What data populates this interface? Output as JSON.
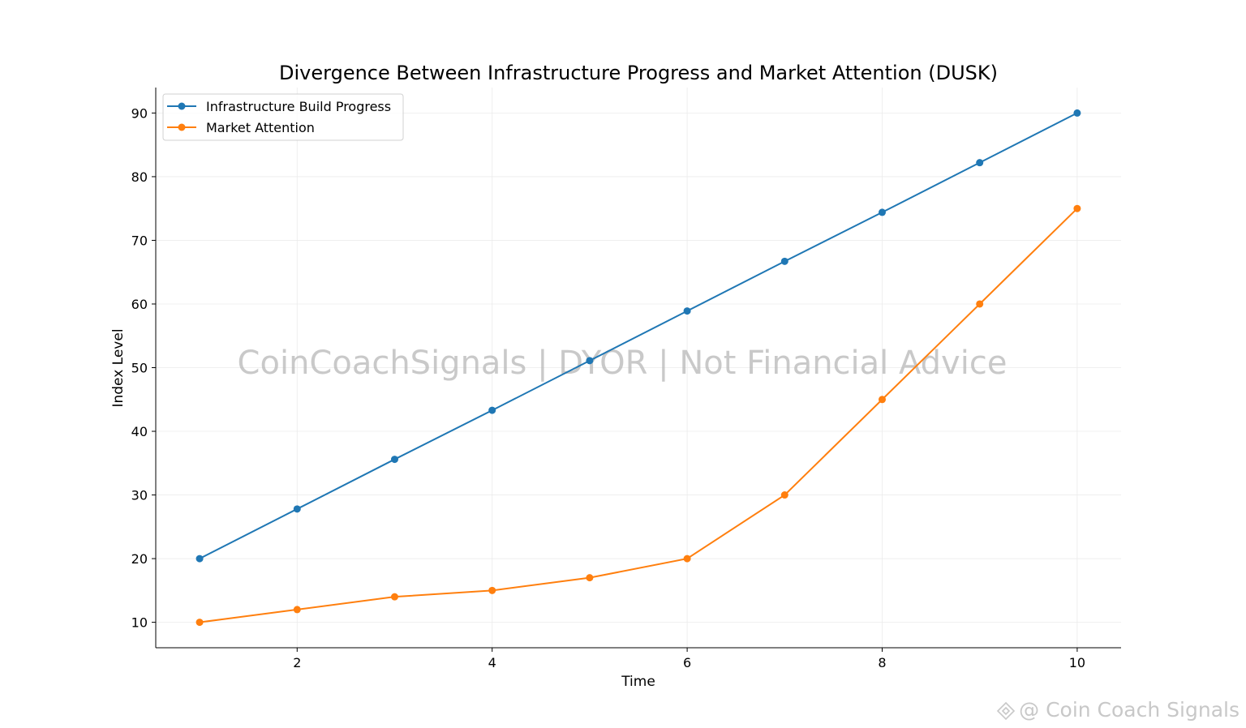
{
  "chart_data": {
    "type": "line",
    "title": "Divergence Between Infrastructure Progress and Market Attention (DUSK)",
    "xlabel": "Time",
    "ylabel": "Index Level",
    "x": [
      1,
      2,
      3,
      4,
      5,
      6,
      7,
      8,
      9,
      10
    ],
    "xlim": [
      0.55,
      10.45
    ],
    "ylim": [
      6,
      94
    ],
    "xticks": [
      2,
      4,
      6,
      8,
      10
    ],
    "yticks": [
      10,
      20,
      30,
      40,
      50,
      60,
      70,
      80,
      90
    ],
    "grid": true,
    "legend_position": "upper left",
    "series": [
      {
        "name": "Infrastructure Build Progress",
        "color": "#1f77b4",
        "marker": "circle",
        "values": [
          20,
          27.8,
          35.6,
          43.3,
          51.1,
          58.9,
          66.7,
          74.4,
          82.2,
          90
        ]
      },
      {
        "name": "Market Attention",
        "color": "#ff7f0e",
        "marker": "circle",
        "values": [
          10,
          12,
          14,
          15,
          17,
          20,
          30,
          45,
          60,
          75
        ]
      }
    ]
  },
  "watermark": "CoinCoachSignals | DYOR | Not Financial Advice",
  "credit": "@ Coin Coach Signals",
  "credit_logo_icon": "binance-diamond-icon"
}
